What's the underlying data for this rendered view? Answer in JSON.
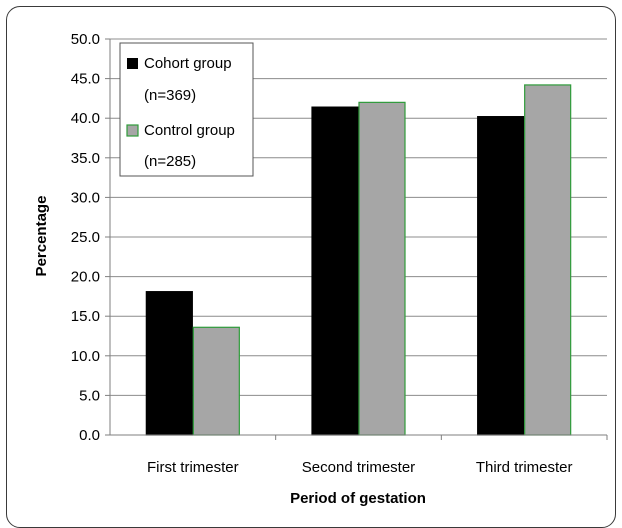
{
  "chart_data": {
    "type": "bar",
    "categories": [
      "First trimester",
      "Second trimester",
      "Third trimester"
    ],
    "series": [
      {
        "name": "Cohort group",
        "name_line2": "(n=369)",
        "values": [
          18.1,
          41.4,
          40.2
        ],
        "color": "#000000",
        "stroke": "#000000"
      },
      {
        "name": "Control group",
        "name_line2": "(n=285)",
        "values": [
          13.6,
          42.0,
          44.2
        ],
        "color": "#a6a6a6",
        "stroke": "#2e9b3a"
      }
    ],
    "ylabel": "Percentage",
    "xlabel": "Period of gestation",
    "ylim": [
      0,
      50
    ],
    "yticks": [
      "0.0",
      "5.0",
      "10.0",
      "15.0",
      "20.0",
      "25.0",
      "30.0",
      "35.0",
      "40.0",
      "45.0",
      "50.0"
    ],
    "grid": true,
    "legend_position": "top-left"
  }
}
